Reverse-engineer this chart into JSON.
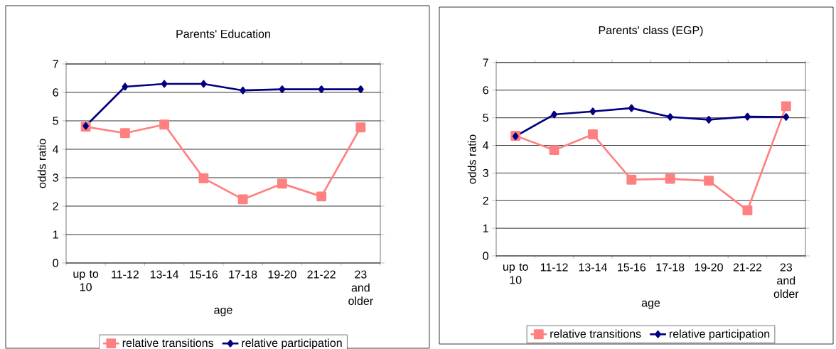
{
  "chart_data": [
    {
      "type": "line",
      "title": "Parents' Education",
      "xlabel": "age",
      "ylabel": "odds ratio",
      "categories": [
        "up to 10",
        "11-12",
        "13-14",
        "15-16",
        "17-18",
        "19-20",
        "21-22",
        "23 and older"
      ],
      "series": [
        {
          "name": "relative transitions",
          "color": "#ff8080",
          "marker": "square",
          "values": [
            4.79,
            4.57,
            4.87,
            2.98,
            2.24,
            2.79,
            2.34,
            4.77
          ]
        },
        {
          "name": "relative participation",
          "color": "#000080",
          "marker": "diamond",
          "values": [
            4.82,
            6.2,
            6.3,
            6.3,
            6.07,
            6.11,
            6.11,
            6.11
          ]
        }
      ],
      "ylim": [
        0,
        7
      ],
      "yticks": [
        0,
        1,
        2,
        3,
        4,
        5,
        6,
        7
      ],
      "grid": "y",
      "legend": "bottom"
    },
    {
      "type": "line",
      "title": "Parents' class (EGP)",
      "xlabel": "age",
      "ylabel": "odds ratio",
      "categories": [
        "up to 10",
        "11-12",
        "13-14",
        "15-16",
        "17-18",
        "19-20",
        "21-22",
        "23 and older"
      ],
      "series": [
        {
          "name": "relative transitions",
          "color": "#ff8080",
          "marker": "square",
          "values": [
            4.35,
            3.83,
            4.4,
            2.76,
            2.79,
            2.72,
            1.65,
            5.42
          ]
        },
        {
          "name": "relative participation",
          "color": "#000080",
          "marker": "diamond",
          "values": [
            4.33,
            5.12,
            5.23,
            5.35,
            5.03,
            4.93,
            5.04,
            5.03
          ]
        }
      ],
      "ylim": [
        0,
        7
      ],
      "yticks": [
        0,
        1,
        2,
        3,
        4,
        5,
        6,
        7
      ],
      "grid": "y",
      "legend": "bottom"
    }
  ]
}
